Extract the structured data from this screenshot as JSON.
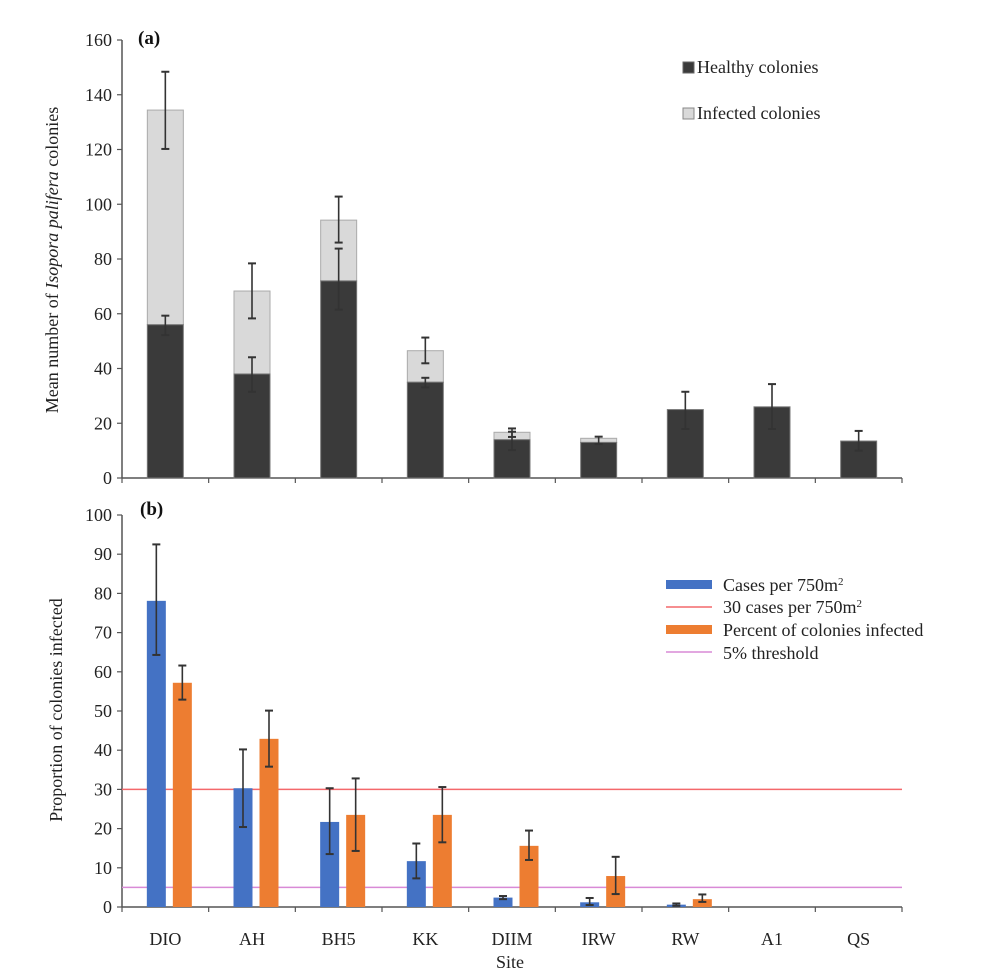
{
  "chart_data": [
    {
      "panel": "(a)",
      "type": "bar",
      "stacked": true,
      "title": "",
      "xlabel": "",
      "ylabel_prefix": "Mean number of ",
      "ylabel_italic": "Isopora palifera",
      "ylabel_suffix": " colonies",
      "ylim": [
        0,
        160
      ],
      "yticks": [
        0,
        20,
        40,
        60,
        80,
        100,
        120,
        140,
        160
      ],
      "grid": false,
      "legend_position": "top-right",
      "categories": [
        "DIO",
        "AH",
        "BH5",
        "KK",
        "DIIM",
        "IRW",
        "RW",
        "A1",
        "QS"
      ],
      "series": [
        {
          "name": "Healthy colonies",
          "color": "#3a3a3a",
          "values": [
            56,
            38,
            72,
            35,
            14,
            13,
            25,
            26,
            13.5
          ],
          "error_low": [
            52.2,
            31.5,
            61.5,
            33.1,
            10.2,
            12.4,
            17.9,
            17.9,
            10
          ],
          "error_high": [
            59.3,
            44.1,
            83.8,
            36.6,
            16.9,
            15.1,
            31.5,
            34.3,
            17.2
          ]
        },
        {
          "name": "Infected colonies",
          "color": "#d9d9d9",
          "totals": [
            134.4,
            68.3,
            94.2,
            46.5,
            16.7,
            14.5,
            25.1,
            26,
            13.5
          ],
          "values": [
            78.4,
            30.3,
            22.2,
            11.5,
            2.7,
            1.5,
            0.1,
            0,
            0
          ],
          "error_low": [
            120.2,
            58.3,
            86,
            41.9,
            15,
            null,
            null,
            null,
            null
          ],
          "error_high": [
            148.4,
            78.4,
            102.8,
            51.3,
            18.1,
            null,
            null,
            null,
            null
          ]
        }
      ]
    },
    {
      "panel": "(b)",
      "type": "bar",
      "stacked": false,
      "title": "",
      "xlabel": "Site",
      "ylabel": "Proportion of colonies infected",
      "ylim": [
        0,
        100
      ],
      "yticks": [
        0,
        10,
        20,
        30,
        40,
        50,
        60,
        70,
        80,
        90,
        100
      ],
      "grid": false,
      "legend_position": "right",
      "categories": [
        "DIO",
        "AH",
        "BH5",
        "KK",
        "DIIM",
        "IRW",
        "RW",
        "A1",
        "QS"
      ],
      "series": [
        {
          "name": "Cases per 750m",
          "superscript": "2",
          "color": "#4472C4",
          "values": [
            78.1,
            30.3,
            21.7,
            11.7,
            2.4,
            1.2,
            0.6,
            0,
            0
          ],
          "error_low": [
            64.3,
            20.4,
            13.5,
            7.3,
            2.0,
            0.5,
            0.3,
            null,
            null
          ],
          "error_high": [
            92.5,
            40.2,
            30.3,
            16.2,
            2.8,
            2.3,
            0.9,
            null,
            null
          ]
        },
        {
          "name": "Percent of colonies infected",
          "color": "#ED7D31",
          "values": [
            57.2,
            42.9,
            23.5,
            23.5,
            15.6,
            7.9,
            2.0,
            0,
            0
          ],
          "error_low": [
            52.9,
            35.8,
            14.3,
            16.5,
            12.0,
            3.3,
            1.3,
            null,
            null
          ],
          "error_high": [
            61.6,
            50.1,
            32.8,
            30.6,
            19.5,
            12.8,
            3.2,
            null,
            null
          ]
        }
      ],
      "reference_lines": [
        {
          "name": "30 cases per 750m",
          "superscript": "2",
          "value": 30,
          "color": "#F4686B"
        },
        {
          "name": "5% threshold",
          "value": 5,
          "color": "#D98AD6"
        }
      ]
    }
  ]
}
